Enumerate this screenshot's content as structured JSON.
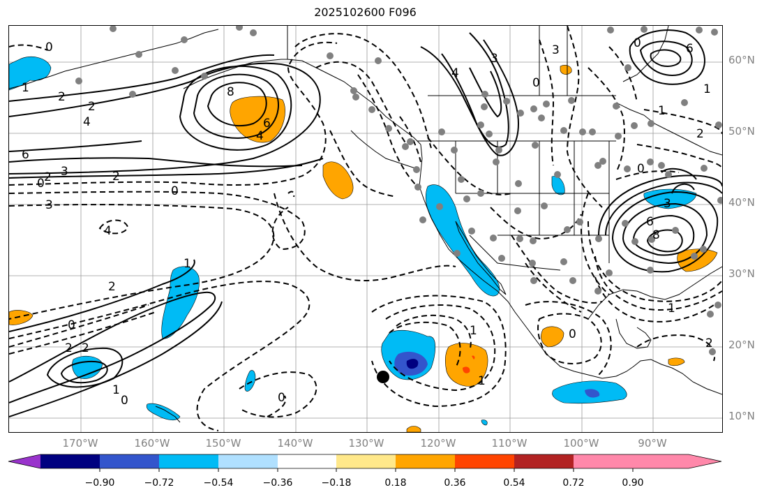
{
  "title": "2025102600 F096",
  "lat_labels": [
    "60°N",
    "50°N",
    "40°N",
    "30°N",
    "20°N",
    "10°N"
  ],
  "lon_labels": [
    "170°W",
    "160°W",
    "150°W",
    "140°W",
    "130°W",
    "120°W",
    "110°W",
    "100°W",
    "90°W"
  ],
  "colorbar": {
    "ticks": [
      "−0.90",
      "−0.72",
      "−0.54",
      "−0.36",
      "−0.18",
      "0.18",
      "0.36",
      "0.54",
      "0.72",
      "0.90"
    ],
    "colors": [
      "#9933cc",
      "#000080",
      "#3355cc",
      "#00bbf5",
      "#b0e0ff",
      "#ffffff",
      "#ffe88a",
      "#ffa500",
      "#ff4400",
      "#b22222",
      "#ff88aa"
    ]
  },
  "contour_labels": {
    "c1": "1",
    "c2": "2",
    "c3": "6",
    "c4": "2",
    "c5": "2",
    "c6": "3",
    "c7": "4",
    "c8": "0",
    "c9": "2",
    "c10": "3",
    "c11": "8",
    "c12": "6",
    "c13": "4",
    "c14": "0",
    "c15": "4",
    "c16": "2",
    "c17": "1",
    "c18": "0",
    "c19": "2",
    "c20": "2",
    "c21": "1",
    "c22": "0",
    "c23": "0",
    "c24": "1",
    "c25": "0",
    "c26": "3",
    "c27": "4",
    "c28": "0",
    "c29": "3",
    "c30": "0",
    "c31": "1",
    "c32": "2",
    "c33": "0",
    "c34": "3",
    "c35": "6",
    "c36": "8",
    "c37": "1",
    "c38": "2",
    "c39": "1",
    "c40": "6",
    "c41": "1",
    "c42": "0"
  }
}
